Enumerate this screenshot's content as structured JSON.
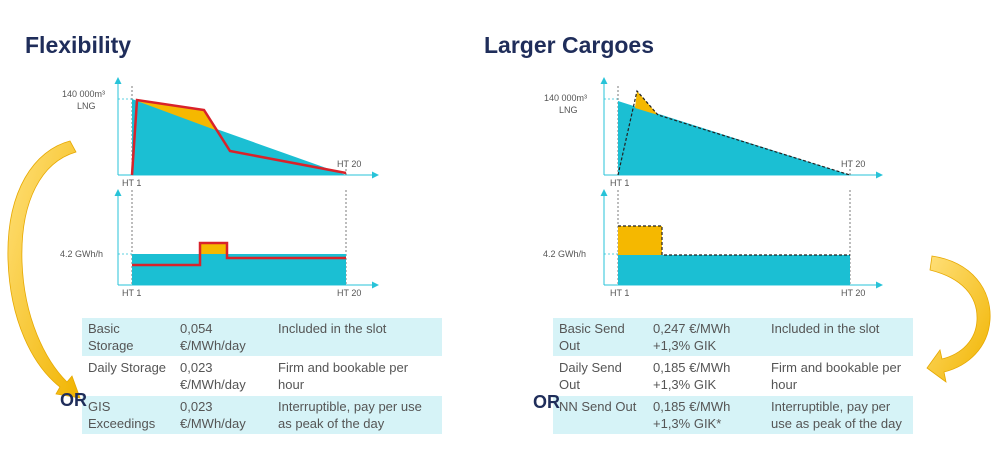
{
  "left": {
    "title": "Flexibility",
    "volume_label_1": "140 000m³",
    "volume_label_2": "LNG",
    "rate_label": "4.2 GWh/h",
    "ht_start": "HT 1",
    "ht_end": "HT 20",
    "or_label": "OR",
    "table": [
      {
        "name": "Basic Storage",
        "price": "0,054 €/MWh/day",
        "desc": "Included in the slot"
      },
      {
        "name": "Daily Storage",
        "price": "0,023 €/MWh/day",
        "desc": "Firm and bookable per hour"
      },
      {
        "name": "GIS Exceedings",
        "price": "0,023 €/MWh/day",
        "desc": "Interruptible, pay per use as peak of the day"
      }
    ]
  },
  "right": {
    "title": "Larger Cargoes",
    "volume_label_1": "140 000m³",
    "volume_label_2": "LNG",
    "rate_label": "4.2 GWh/h",
    "ht_start": "HT 1",
    "ht_end": "HT 20",
    "or_label": "OR",
    "table": [
      {
        "name": "Basic Send Out",
        "price": "0,247 €/MWh +1,3% GIK",
        "desc": "Included in the slot"
      },
      {
        "name": "Daily Send Out",
        "price": "0,185 €/MWh +1,3% GIK",
        "desc": "Firm and bookable per hour"
      },
      {
        "name": "NN Send Out",
        "price": "0,185 €/MWh +1,3% GIK*",
        "desc": "Interruptible, pay per use as peak of the day"
      }
    ]
  },
  "colors": {
    "cyan": "#1bbfd3",
    "orange": "#f5b800",
    "red": "#d9222a",
    "axis": "#27c3d8",
    "navy": "#1f2d5a",
    "band": "#d6f3f7"
  }
}
